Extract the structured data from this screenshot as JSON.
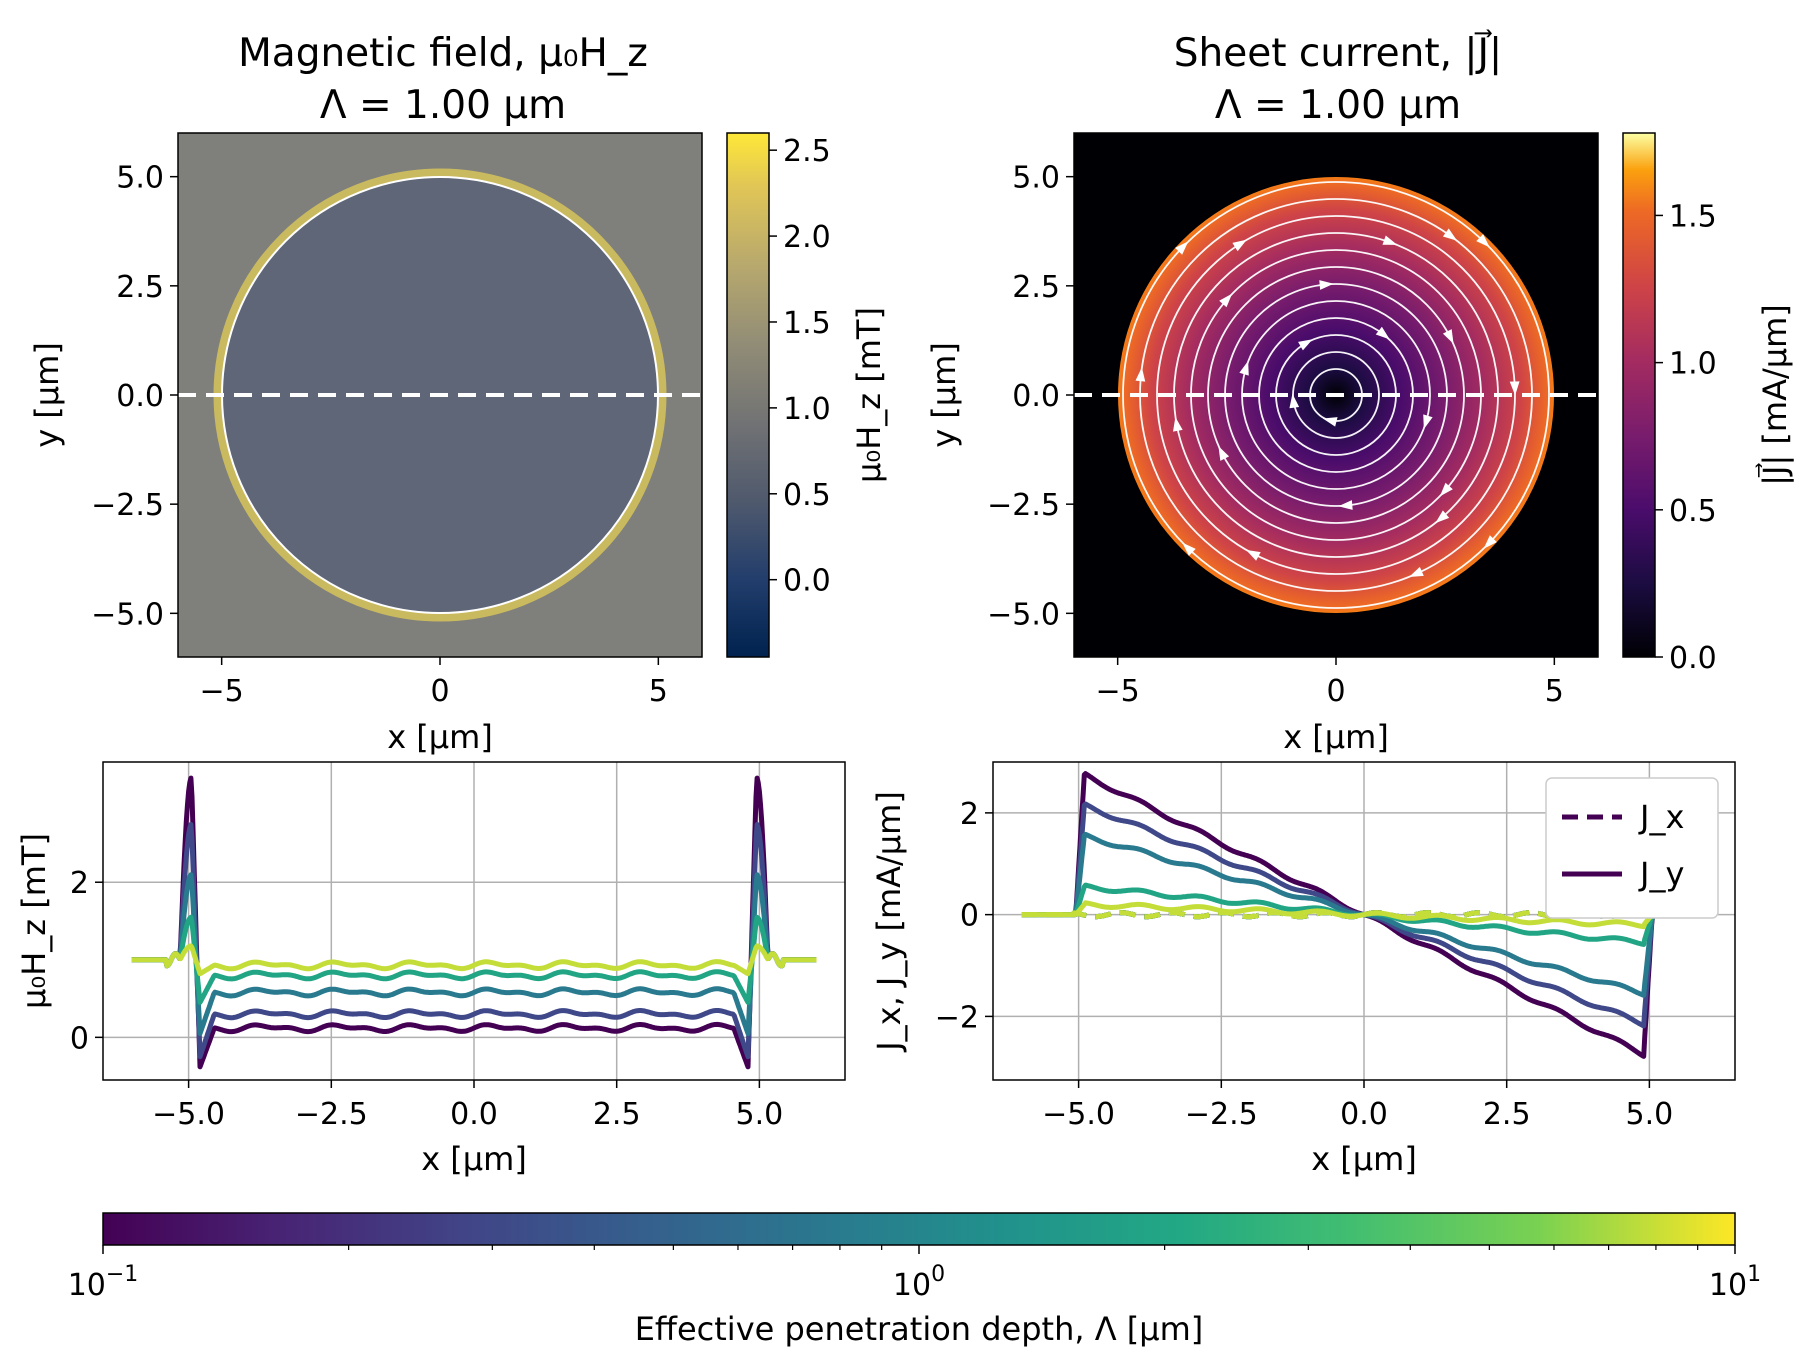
{
  "chart_data": [
    {
      "type": "heatmap",
      "title_line1": "Magnetic field, μ₀H_z",
      "title_line2": "Λ = 1.00 μm",
      "xlabel": "x [μm]",
      "ylabel": "y [μm]",
      "xlim": [
        -6,
        6
      ],
      "ylim": [
        -6,
        6
      ],
      "xticks": [
        -5,
        0,
        5
      ],
      "yticks": [
        -5.0,
        -2.5,
        0.0,
        2.5,
        5.0
      ],
      "disk_radius": 5,
      "cut_line_y": 0,
      "interior_value": 0.7,
      "edge_value": 2.4,
      "colormap": "cividis",
      "colorbar": {
        "label": "μ₀H_z [mT]",
        "range": [
          -0.45,
          2.6
        ],
        "ticks": [
          0.0,
          0.5,
          1.0,
          1.5,
          2.0,
          2.5
        ]
      }
    },
    {
      "type": "heatmap",
      "title_line1": "Sheet current, |J⃗|",
      "title_line2": "Λ = 1.00 μm",
      "xlabel": "x [μm]",
      "ylabel": "y [μm]",
      "xlim": [
        -6,
        6
      ],
      "ylim": [
        -6,
        6
      ],
      "xticks": [
        -5,
        0,
        5
      ],
      "yticks": [
        -5.0,
        -2.5,
        0.0,
        2.5,
        5.0
      ],
      "disk_radius": 5,
      "cut_line_y": 0,
      "max_value": 1.45,
      "streamlines": "clockwise",
      "colormap": "inferno",
      "colorbar": {
        "label": "|J⃗| [mA/μm]",
        "range": [
          0,
          1.78
        ],
        "ticks": [
          0.0,
          0.5,
          1.0,
          1.5
        ]
      }
    },
    {
      "type": "line",
      "xlabel": "x [μm]",
      "ylabel": "μ₀H_z [mT]",
      "xlim": [
        -6.5,
        6.5
      ],
      "ylim": [
        -0.55,
        3.55
      ],
      "xticks": [
        -5.0,
        -2.5,
        0.0,
        2.5,
        5.0
      ],
      "yticks": [
        0,
        2
      ],
      "grid": true,
      "series": [
        {
          "lambda": 0.1,
          "interior": 0.12,
          "peak": 3.35,
          "dip": -0.38
        },
        {
          "lambda": 0.3,
          "interior": 0.3,
          "peak": 2.75,
          "dip": -0.25
        },
        {
          "lambda": 0.8,
          "interior": 0.58,
          "peak": 2.1,
          "dip": 0.05
        },
        {
          "lambda": 2.0,
          "interior": 0.8,
          "peak": 1.55,
          "dip": 0.45
        },
        {
          "lambda": 8.0,
          "interior": 0.93,
          "peak": 1.18,
          "dip": 0.82
        }
      ]
    },
    {
      "type": "line",
      "xlabel": "x [μm]",
      "ylabel": "J_x, J_y [mA/μm]",
      "xlim": [
        -6.5,
        6.5
      ],
      "ylim": [
        -3.25,
        3.0
      ],
      "xticks": [
        -5.0,
        -2.5,
        0.0,
        2.5,
        5.0
      ],
      "yticks": [
        -2,
        0,
        2
      ],
      "grid": true,
      "legend": {
        "position": "top-right",
        "entries": [
          {
            "label": "J_x",
            "style": "dashed"
          },
          {
            "label": "J_y",
            "style": "solid"
          }
        ]
      },
      "series": [
        {
          "lambda": 0.1,
          "edge": 2.75
        },
        {
          "lambda": 0.3,
          "edge": 2.15
        },
        {
          "lambda": 0.8,
          "edge": 1.55
        },
        {
          "lambda": 2.0,
          "edge": 0.55
        },
        {
          "lambda": 8.0,
          "edge": 0.2
        }
      ]
    }
  ],
  "bottom_colorbar": {
    "label": "Effective penetration depth, Λ [μm]",
    "scale": "log",
    "range": [
      0.1,
      10
    ],
    "ticks": [
      {
        "value": 0.1,
        "base": "10",
        "exp": "−1"
      },
      {
        "value": 1,
        "base": "10",
        "exp": "0"
      },
      {
        "value": 10,
        "base": "10",
        "exp": "1"
      }
    ],
    "colormap": "viridis"
  }
}
